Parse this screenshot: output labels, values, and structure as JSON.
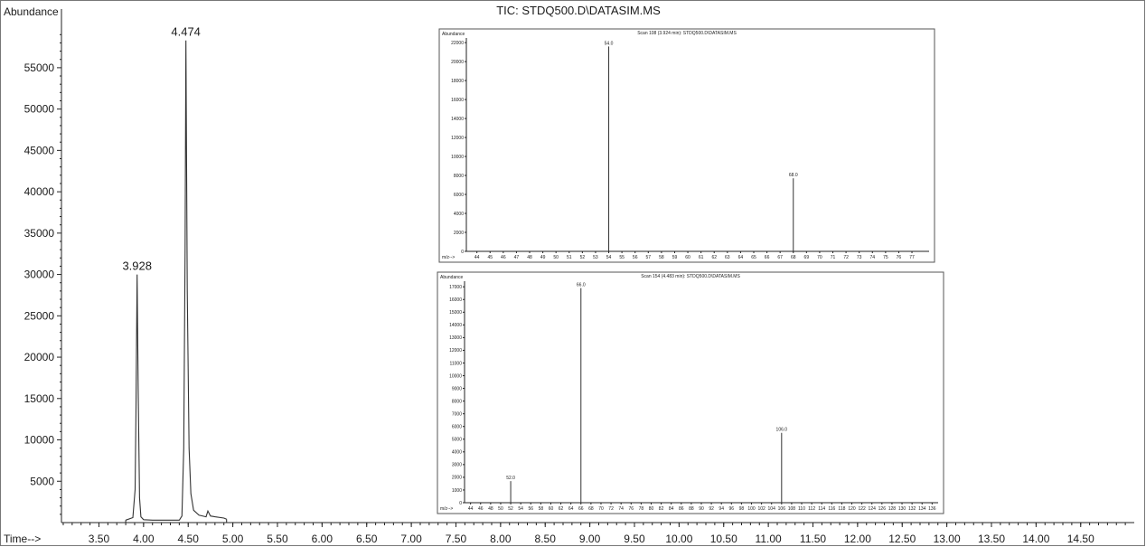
{
  "chart_data": [
    {
      "type": "line",
      "title": "TIC: STDQ500.D\\DATASIM.MS",
      "ylabel": "Abundance",
      "xlabel": "Time-->",
      "xlim": [
        3.08,
        15.1
      ],
      "ylim": [
        0,
        61000
      ],
      "x_ticks": [
        "3.50",
        "4.00",
        "4.50",
        "5.00",
        "5.50",
        "6.00",
        "6.50",
        "7.00",
        "7.50",
        "8.00",
        "8.50",
        "9.00",
        "9.50",
        "10.00",
        "10.50",
        "11.00",
        "11.50",
        "12.00",
        "12.50",
        "13.00",
        "13.50",
        "14.00",
        "14.50"
      ],
      "y_ticks": [
        "5000",
        "10000",
        "15000",
        "20000",
        "25000",
        "30000",
        "35000",
        "40000",
        "45000",
        "50000",
        "55000"
      ],
      "peaks": [
        {
          "rt": 3.928,
          "abundance": 30000,
          "label": "3.928"
        },
        {
          "rt": 4.474,
          "abundance": 58300,
          "label": "4.474"
        }
      ],
      "series": [
        {
          "x": [
            3.8,
            3.88,
            3.905,
            3.915,
            3.928,
            3.94,
            3.955,
            3.97,
            4.0,
            4.1,
            4.2,
            4.3,
            4.4,
            4.43,
            4.45,
            4.465,
            4.474,
            4.49,
            4.51,
            4.53,
            4.56,
            4.62,
            4.7,
            4.72,
            4.75,
            4.8,
            4.9,
            4.93
          ],
          "y": [
            300,
            600,
            4000,
            14000,
            30000,
            16000,
            3000,
            700,
            350,
            300,
            300,
            300,
            300,
            800,
            9000,
            33000,
            58300,
            28000,
            9000,
            3500,
            1500,
            900,
            700,
            1400,
            800,
            700,
            550,
            400
          ]
        }
      ]
    },
    {
      "type": "bar",
      "title": "Scan 108 (3.924 min): STDQ500.D\\DATASIM.MS",
      "ylabel": "Abundance",
      "xlabel": "m/z-->",
      "xlim": [
        43.2,
        78.3
      ],
      "ylim": [
        0,
        22300
      ],
      "x_ticks": [
        "44",
        "45",
        "46",
        "47",
        "48",
        "49",
        "50",
        "51",
        "52",
        "53",
        "54",
        "55",
        "56",
        "57",
        "58",
        "59",
        "60",
        "61",
        "62",
        "63",
        "64",
        "65",
        "66",
        "67",
        "68",
        "69",
        "70",
        "71",
        "72",
        "73",
        "74",
        "75",
        "76",
        "77"
      ],
      "y_ticks": [
        "0",
        "2000",
        "4000",
        "6000",
        "8000",
        "10000",
        "12000",
        "14000",
        "16000",
        "18000",
        "20000",
        "22000"
      ],
      "peaks": [
        {
          "mz": 54.0,
          "abundance": 21600,
          "label": "54.0"
        },
        {
          "mz": 68.0,
          "abundance": 7700,
          "label": "68.0"
        }
      ]
    },
    {
      "type": "bar",
      "title": "Scan 154 (4.483 min): STDQ500.D\\DATASIM.MS",
      "ylabel": "Abundance",
      "xlabel": "m/z-->",
      "xlim": [
        42.8,
        137.2
      ],
      "ylim": [
        0,
        17300
      ],
      "x_ticks": [
        "44",
        "46",
        "48",
        "50",
        "52",
        "54",
        "56",
        "58",
        "60",
        "62",
        "64",
        "66",
        "68",
        "70",
        "72",
        "74",
        "76",
        "78",
        "80",
        "82",
        "84",
        "86",
        "88",
        "90",
        "92",
        "94",
        "96",
        "98",
        "100",
        "102",
        "104",
        "106",
        "108",
        "110",
        "112",
        "114",
        "116",
        "118",
        "120",
        "122",
        "124",
        "126",
        "128",
        "130",
        "132",
        "134",
        "136"
      ],
      "y_ticks": [
        "0",
        "1000",
        "2000",
        "3000",
        "4000",
        "5000",
        "6000",
        "7000",
        "8000",
        "9000",
        "10000",
        "11000",
        "12000",
        "13000",
        "14000",
        "15000",
        "16000",
        "17000"
      ],
      "peaks": [
        {
          "mz": 52.0,
          "abundance": 1700,
          "label": "52.0"
        },
        {
          "mz": 66.0,
          "abundance": 16900,
          "label": "66.0"
        },
        {
          "mz": 106.0,
          "abundance": 5500,
          "label": "106.0"
        }
      ]
    }
  ],
  "colors": {
    "ink": "#1a1a1a",
    "frame": "#555555",
    "background": "#ffffff"
  }
}
